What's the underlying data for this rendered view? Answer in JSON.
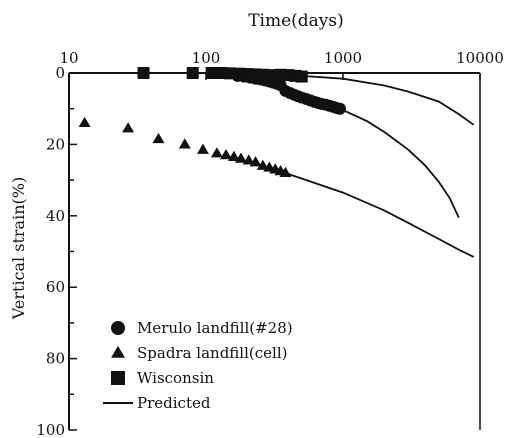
{
  "chart_data": {
    "type": "scatter",
    "title": "",
    "xlabel": "Time(days)",
    "ylabel": "Vertical strain(%)",
    "x_scale": "log",
    "x_axis_position": "top",
    "y_inverted": true,
    "xlim": [
      10,
      10000
    ],
    "ylim": [
      0,
      100
    ],
    "x_ticks": [
      10,
      100,
      1000,
      10000
    ],
    "x_tick_labels": [
      "10",
      "100",
      "1000",
      "10000"
    ],
    "y_ticks": [
      0,
      20,
      40,
      60,
      80,
      100
    ],
    "y_tick_labels": [
      "0",
      "20",
      "40",
      "60",
      "80",
      "100"
    ],
    "grid": false,
    "legend_position": "bottom-left",
    "series": [
      {
        "name": "Merulo landfill(#28)",
        "marker": "circle",
        "points": [
          [
            170,
            0.8
          ],
          [
            190,
            1.0
          ],
          [
            210,
            1.3
          ],
          [
            230,
            1.6
          ],
          [
            250,
            1.8
          ],
          [
            270,
            2.1
          ],
          [
            290,
            2.4
          ],
          [
            310,
            2.7
          ],
          [
            330,
            3.0
          ],
          [
            350,
            3.4
          ],
          [
            380,
            5.0
          ],
          [
            410,
            5.6
          ],
          [
            440,
            6.1
          ],
          [
            470,
            6.5
          ],
          [
            500,
            6.9
          ],
          [
            540,
            7.3
          ],
          [
            580,
            7.7
          ],
          [
            620,
            8.1
          ],
          [
            660,
            8.4
          ],
          [
            700,
            8.7
          ],
          [
            750,
            8.9
          ],
          [
            800,
            9.2
          ],
          [
            850,
            9.5
          ],
          [
            900,
            9.8
          ],
          [
            950,
            10.0
          ]
        ]
      },
      {
        "name": "Spadra landfill(cell)",
        "marker": "triangle",
        "points": [
          [
            13,
            14
          ],
          [
            27,
            15.5
          ],
          [
            45,
            18.5
          ],
          [
            70,
            20
          ],
          [
            95,
            21.5
          ],
          [
            120,
            22.5
          ],
          [
            140,
            23
          ],
          [
            160,
            23.5
          ],
          [
            180,
            24
          ],
          [
            205,
            24.5
          ],
          [
            230,
            25
          ],
          [
            260,
            26
          ],
          [
            290,
            26.5
          ],
          [
            320,
            27
          ],
          [
            350,
            27.5
          ],
          [
            380,
            28
          ]
        ]
      },
      {
        "name": "Wisconsin",
        "marker": "square",
        "points": [
          [
            35,
            0
          ],
          [
            80,
            0
          ],
          [
            110,
            0
          ],
          [
            130,
            0
          ],
          [
            150,
            0.1
          ],
          [
            175,
            0.2
          ],
          [
            200,
            0.3
          ],
          [
            230,
            0.4
          ],
          [
            260,
            0.5
          ],
          [
            300,
            0.6
          ],
          [
            350,
            0.5
          ],
          [
            400,
            0.6
          ],
          [
            450,
            0.8
          ],
          [
            500,
            1.0
          ]
        ]
      },
      {
        "name": "Predicted",
        "marker": "line",
        "lines": [
          [
            [
              500,
              0.8
            ],
            [
              1000,
              1.6
            ],
            [
              2000,
              3.5
            ],
            [
              3000,
              5.2
            ],
            [
              5000,
              8.0
            ],
            [
              7000,
              11.5
            ],
            [
              9000,
              14.5
            ]
          ],
          [
            [
              950,
              10.0
            ],
            [
              1500,
              13.5
            ],
            [
              2000,
              16.5
            ],
            [
              3000,
              21.5
            ],
            [
              4000,
              26.0
            ],
            [
              5000,
              30.5
            ],
            [
              6000,
              35.0
            ],
            [
              7000,
              40.5
            ]
          ],
          [
            [
              380,
              28.0
            ],
            [
              1000,
              33.5
            ],
            [
              2000,
              38.5
            ],
            [
              3000,
              42.0
            ],
            [
              5000,
              46.5
            ],
            [
              7000,
              49.5
            ],
            [
              9000,
              51.5
            ]
          ]
        ]
      }
    ]
  }
}
